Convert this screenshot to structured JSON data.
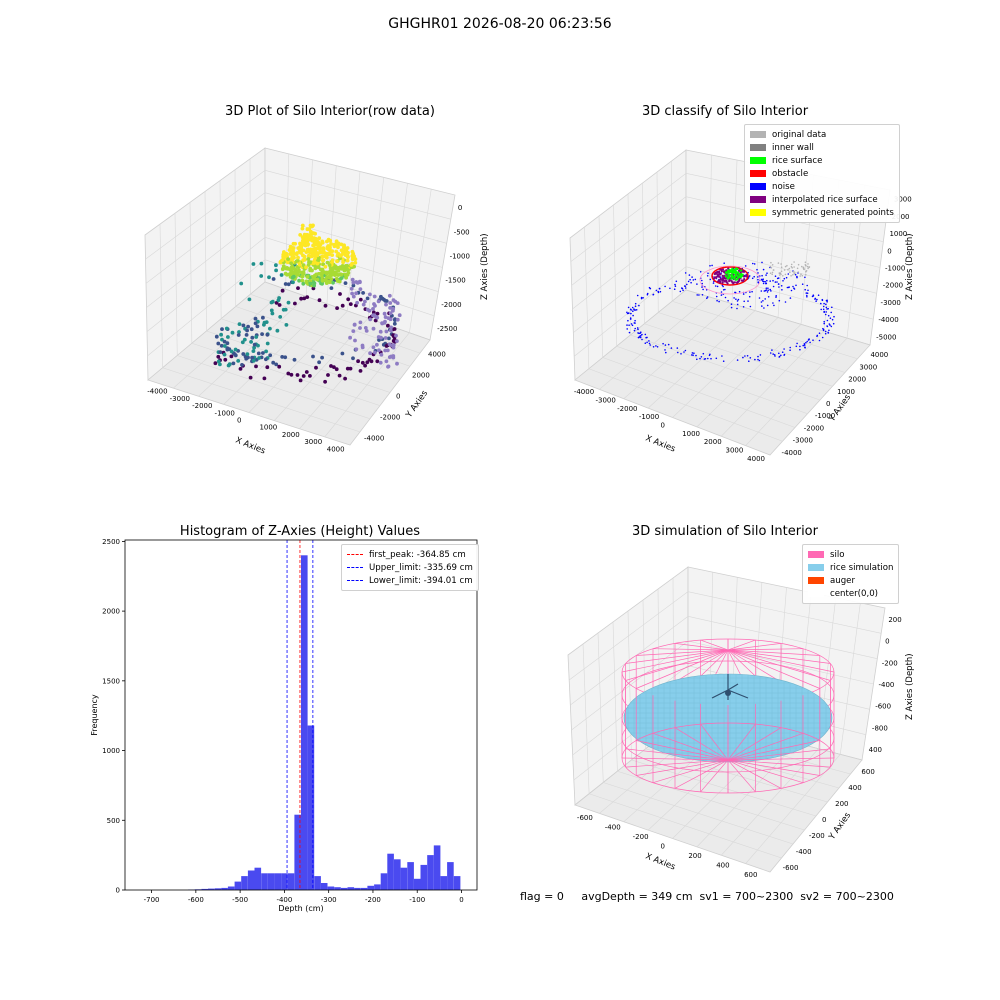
{
  "figure": {
    "suptitle": "GHGHR01 2026-08-20 06:23:56",
    "status_text": "flag = 0     avgDepth = 349 cm  sv1 = 700~2300  sv2 = 700~2300"
  },
  "chart_data": [
    {
      "type": "scatter",
      "title": "3D Plot of Silo Interior(row data)",
      "xlabel": "X Axies",
      "ylabel": "Y Axies",
      "zlabel": "Z Axies (Depth)",
      "xticks": [
        -4000,
        -3000,
        -2000,
        -1000,
        0,
        1000,
        2000,
        3000,
        4000
      ],
      "yticks": [
        -4000,
        -2000,
        0,
        2000,
        4000
      ],
      "zticks": [
        0,
        -500,
        -1000,
        -1500,
        -2000,
        -2500
      ],
      "colormap": [
        "#440154",
        "#3b528b",
        "#21918c",
        "#5ec962",
        "#fde725"
      ],
      "point_color": "#8e7cc3"
    },
    {
      "type": "scatter",
      "title": "3D classify of Silo Interior",
      "xticks": [
        -4000,
        -3000,
        -2000,
        -1000,
        0,
        1000,
        2000,
        3000,
        4000
      ],
      "yticks": [
        -4000,
        -3000,
        -2000,
        -1000,
        0,
        1000,
        2000,
        3000,
        4000
      ],
      "zticks": [
        3000,
        2000,
        1000,
        0,
        -1000,
        -2000,
        -3000,
        -4000,
        -5000
      ],
      "xlabel": "X Axies",
      "ylabel": "Y Axies",
      "zlabel": "Z Axies (Depth)",
      "legend": [
        {
          "label": "original data",
          "color": "#b3b3b3"
        },
        {
          "label": "inner wall",
          "color": "#808080"
        },
        {
          "label": "rice surface",
          "color": "#00ff00"
        },
        {
          "label": "obstacle",
          "color": "#ff0000"
        },
        {
          "label": "noise",
          "color": "#0000ff"
        },
        {
          "label": "interpolated rice surface",
          "color": "#800080"
        },
        {
          "label": "symmetric generated points",
          "color": "#ffff00"
        }
      ]
    },
    {
      "type": "bar",
      "title": "Histogram of Z-Axies (Height) Values",
      "xlabel": "Depth (cm)",
      "ylabel": "Frequency",
      "xlim": [
        -760,
        35
      ],
      "ylim": [
        0,
        2510
      ],
      "xticks": [
        -700,
        -600,
        -500,
        -400,
        -300,
        -200,
        -100,
        0
      ],
      "yticks": [
        0,
        500,
        1000,
        1500,
        2000,
        2500
      ],
      "bar_color": "#4a4af0",
      "bin_width": 15,
      "bins": [
        {
          "x": -610,
          "y": 3
        },
        {
          "x": -595,
          "y": 5
        },
        {
          "x": -580,
          "y": 8
        },
        {
          "x": -565,
          "y": 10
        },
        {
          "x": -550,
          "y": 12
        },
        {
          "x": -535,
          "y": 15
        },
        {
          "x": -520,
          "y": 25
        },
        {
          "x": -505,
          "y": 60
        },
        {
          "x": -490,
          "y": 100
        },
        {
          "x": -475,
          "y": 140
        },
        {
          "x": -460,
          "y": 160
        },
        {
          "x": -445,
          "y": 120
        },
        {
          "x": -430,
          "y": 120
        },
        {
          "x": -415,
          "y": 120
        },
        {
          "x": -400,
          "y": 120
        },
        {
          "x": -385,
          "y": 120
        },
        {
          "x": -370,
          "y": 540
        },
        {
          "x": -355,
          "y": 2400
        },
        {
          "x": -340,
          "y": 1180
        },
        {
          "x": -325,
          "y": 100
        },
        {
          "x": -310,
          "y": 50
        },
        {
          "x": -295,
          "y": 25
        },
        {
          "x": -280,
          "y": 20
        },
        {
          "x": -265,
          "y": 15
        },
        {
          "x": -250,
          "y": 20
        },
        {
          "x": -235,
          "y": 15
        },
        {
          "x": -220,
          "y": 15
        },
        {
          "x": -205,
          "y": 30
        },
        {
          "x": -190,
          "y": 40
        },
        {
          "x": -175,
          "y": 120
        },
        {
          "x": -160,
          "y": 260
        },
        {
          "x": -145,
          "y": 220
        },
        {
          "x": -130,
          "y": 160
        },
        {
          "x": -115,
          "y": 200
        },
        {
          "x": -100,
          "y": 80
        },
        {
          "x": -85,
          "y": 180
        },
        {
          "x": -70,
          "y": 250
        },
        {
          "x": -55,
          "y": 320
        },
        {
          "x": -40,
          "y": 100
        },
        {
          "x": -25,
          "y": 200
        },
        {
          "x": -10,
          "y": 100
        }
      ],
      "legend": [
        {
          "label": "first_peak: -364.85 cm",
          "color": "#ff0000",
          "value": -364.85
        },
        {
          "label": "Upper_limit: -335.69 cm",
          "color": "#0000ff",
          "value": -335.69
        },
        {
          "label": "Lower_limit: -394.01 cm",
          "color": "#0000ff",
          "value": -394.01
        }
      ]
    },
    {
      "type": "scatter",
      "title": "3D simulation of Silo Interior",
      "xlabel": "X Axies",
      "ylabel": "Y Axies",
      "zlabel": "Z Axies (Depth)",
      "xticks": [
        -600,
        -400,
        -200,
        0,
        200,
        400,
        600
      ],
      "yticks": [
        -600,
        -400,
        -200,
        0,
        200,
        400,
        600
      ],
      "zticks": [
        200,
        0,
        -200,
        -400,
        -600,
        -800,
        400
      ],
      "legend": [
        {
          "label": "silo",
          "color": "#ff69b4"
        },
        {
          "label": "rice simulation",
          "color": "#87ceeb"
        },
        {
          "label": "auger",
          "color": "#ff4500"
        },
        {
          "label": "center(0,0)",
          "color": "#ffffff"
        }
      ]
    }
  ]
}
